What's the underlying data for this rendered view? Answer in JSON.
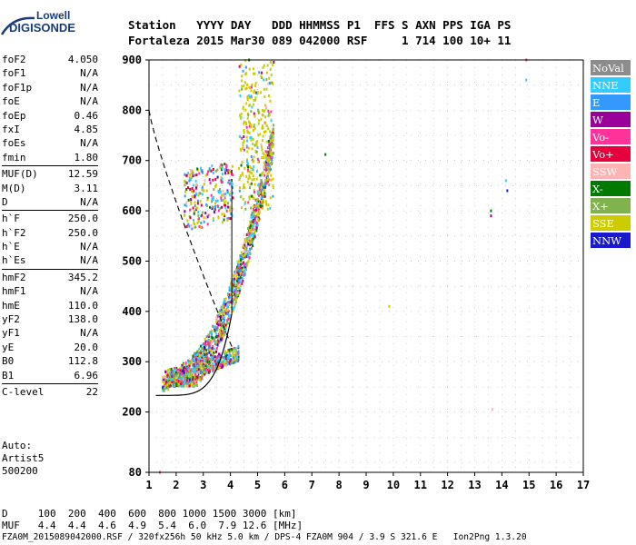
{
  "logo": {
    "line1": "Lowell",
    "line2": "DIGISONDE"
  },
  "header": {
    "row1": "Station   YYYY DAY   DDD HHMMSS P1  FFS S AXN PPS IGA PS",
    "row2": "Fortaleza 2015 Mar30 089 042000 RSF     1 714 100 10+ 11"
  },
  "params": {
    "group1": [
      {
        "label": "foF2",
        "value": "4.050"
      },
      {
        "label": "foF1",
        "value": "N/A"
      },
      {
        "label": "foF1p",
        "value": "N/A"
      },
      {
        "label": "foE",
        "value": "N/A"
      },
      {
        "label": "foEp",
        "value": "0.46"
      },
      {
        "label": "fxI",
        "value": "4.85"
      },
      {
        "label": "foEs",
        "value": "N/A"
      },
      {
        "label": "fmin",
        "value": "1.80"
      }
    ],
    "group2": [
      {
        "label": "MUF(D)",
        "value": "12.59"
      },
      {
        "label": "M(D)",
        "value": "3.11"
      },
      {
        "label": "D",
        "value": "N/A"
      }
    ],
    "group3": [
      {
        "label": "h`F",
        "value": "250.0"
      },
      {
        "label": "h`F2",
        "value": "250.0"
      },
      {
        "label": "h`E",
        "value": "N/A"
      },
      {
        "label": "h`Es",
        "value": "N/A"
      }
    ],
    "group4": [
      {
        "label": "hmF2",
        "value": "345.2"
      },
      {
        "label": "hmF1",
        "value": "N/A"
      },
      {
        "label": "hmE",
        "value": "110.0"
      },
      {
        "label": "yF2",
        "value": "138.0"
      },
      {
        "label": "yF1",
        "value": "N/A"
      },
      {
        "label": "yE",
        "value": "20.0"
      },
      {
        "label": "B0",
        "value": "112.8"
      },
      {
        "label": "B1",
        "value": "6.96"
      }
    ],
    "group5": [
      {
        "label": "C-level",
        "value": "22"
      }
    ]
  },
  "auto": {
    "line1": "Auto:",
    "line2": "Artist5",
    "line3": "500200"
  },
  "legend": [
    {
      "label": "NoVal",
      "color": "#8c8c8c"
    },
    {
      "label": "NNE",
      "color": "#33ccff"
    },
    {
      "label": "E",
      "color": "#3399ff"
    },
    {
      "label": "W",
      "color": "#990099"
    },
    {
      "label": "Vo-",
      "color": "#ff3399"
    },
    {
      "label": "Vo+",
      "color": "#e6003c"
    },
    {
      "label": "SSW",
      "color": "#ffb3b3"
    },
    {
      "label": "X-",
      "color": "#007a00"
    },
    {
      "label": "X+",
      "color": "#80b34d"
    },
    {
      "label": "SSE",
      "color": "#cccc00"
    },
    {
      "label": "NNW",
      "color": "#1a1acc"
    }
  ],
  "chart_data": {
    "type": "scatter",
    "xlim": [
      1,
      17
    ],
    "ylim": [
      80,
      900
    ],
    "x_ticks": [
      "1",
      "2",
      "3",
      "4",
      "5",
      "6",
      "7",
      "8",
      "9",
      "10",
      "11",
      "12",
      "13",
      "14",
      "15",
      "16",
      "17"
    ],
    "y_ticks": [
      "80",
      "200",
      "300",
      "400",
      "500",
      "600",
      "700",
      "800",
      "900"
    ],
    "grid": true
  },
  "footer": {
    "row1": "D     100  200  400  600  800 1000 1500 3000 [km]",
    "row2": "MUF   4.4  4.4  4.6  4.9  5.4  6.0  7.9 12.6 [MHz]",
    "row3": "FZA0M_2015089042000.RSF / 320fx256h 50 kHz 5.0 km / DPS-4 FZA0M 904 / 3.9 S 321.6 E   Ion2Png 1.3.20"
  }
}
